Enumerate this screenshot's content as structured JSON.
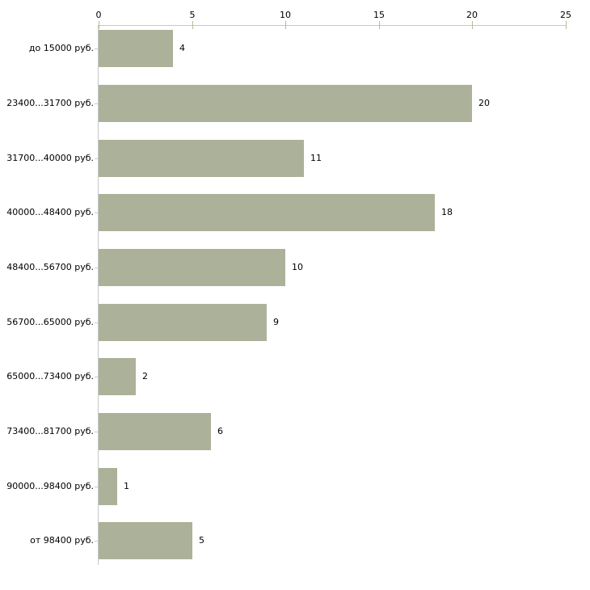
{
  "chart_data": {
    "type": "bar",
    "orientation": "horizontal",
    "title": "",
    "xlabel": "",
    "ylabel": "",
    "categories": [
      "до 15000 руб.",
      "23400...31700 руб.",
      "31700...40000 руб.",
      "40000...48400 руб.",
      "48400...56700 руб.",
      "56700...65000 руб.",
      "65000...73400 руб.",
      "73400...81700 руб.",
      "90000...98400 руб.",
      "от 98400 руб."
    ],
    "values": [
      4,
      20,
      11,
      18,
      10,
      9,
      2,
      6,
      1,
      5
    ],
    "value_labels": [
      "4",
      "20",
      "11",
      "18",
      "10",
      "9",
      "2",
      "6",
      "1",
      "5"
    ],
    "x_ticks": [
      0,
      5,
      10,
      15,
      20,
      25
    ],
    "x_tick_labels": [
      "0",
      "5",
      "10",
      "15",
      "20",
      "25"
    ],
    "xlim": [
      0,
      25
    ],
    "axis_position": "top",
    "grid": false,
    "legend": false,
    "colors": {
      "bar": "#acb199",
      "axis_line": "#c8c8c8",
      "axis_tick": "#bcba92",
      "category_tick": "#c8c8c8",
      "text": "#000000",
      "background": "#ffffff"
    }
  }
}
